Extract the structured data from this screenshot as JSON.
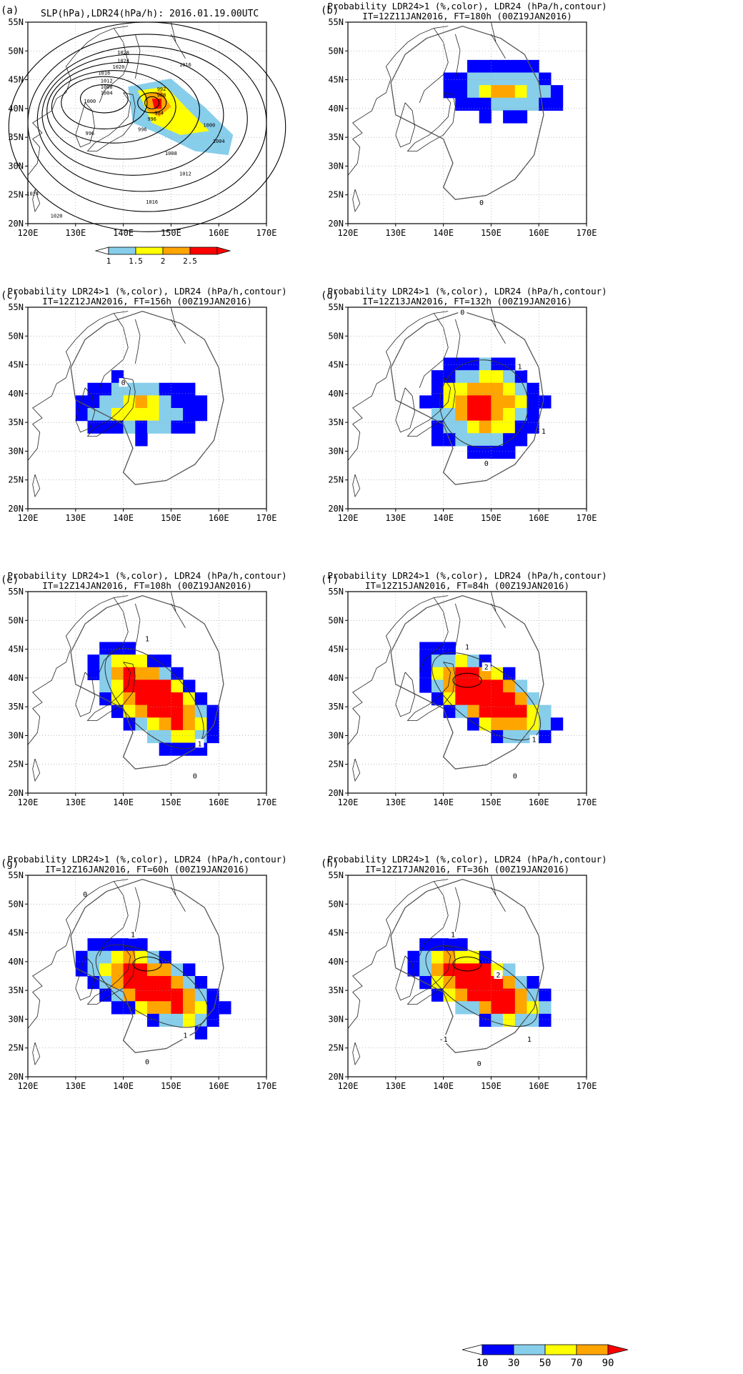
{
  "panels": [
    {
      "id": "a",
      "label": "(a)",
      "title1": "SLP(hPa),LDR24(hPa/h): 2016.01.19.00UTC",
      "title2": ""
    },
    {
      "id": "b",
      "label": "(b)",
      "title1": "Probability LDR24>1 (%,color), LDR24 (hPa/h,contour)",
      "title2": "IT=12Z11JAN2016, FT=180h (00Z19JAN2016)"
    },
    {
      "id": "c",
      "label": "(c)",
      "title1": "Probability LDR24>1 (%,color), LDR24 (hPa/h,contour)",
      "title2": "IT=12Z12JAN2016, FT=156h (00Z19JAN2016)"
    },
    {
      "id": "d",
      "label": "(d)",
      "title1": "Probability LDR24>1 (%,color), LDR24 (hPa/h,contour)",
      "title2": "IT=12Z13JAN2016, FT=132h (00Z19JAN2016)"
    },
    {
      "id": "e",
      "label": "(e)",
      "title1": "Probability LDR24>1 (%,color), LDR24 (hPa/h,contour)",
      "title2": "IT=12Z14JAN2016, FT=108h (00Z19JAN2016)"
    },
    {
      "id": "f",
      "label": "(f)",
      "title1": "Probability LDR24>1 (%,color), LDR24 (hPa/h,contour)",
      "title2": "IT=12Z15JAN2016, FT=84h (00Z19JAN2016)"
    },
    {
      "id": "g",
      "label": "(g)",
      "title1": "Probability LDR24>1 (%,color), LDR24 (hPa/h,contour)",
      "title2": "IT=12Z16JAN2016, FT=60h (00Z19JAN2016)"
    },
    {
      "id": "h",
      "label": "(h)",
      "title1": "Probability LDR24>1 (%,color), LDR24 (hPa/h,contour)",
      "title2": "IT=12Z17JAN2016, FT=36h (00Z19JAN2016)"
    }
  ],
  "axes": {
    "lon_labels": [
      "120E",
      "130E",
      "140E",
      "150E",
      "160E",
      "170E"
    ],
    "lat_labels": [
      "20N",
      "25N",
      "30N",
      "35N",
      "40N",
      "45N",
      "50N",
      "55N"
    ]
  },
  "colorbar_a": {
    "labels": [
      "1",
      "1.5",
      "2",
      "2.5"
    ],
    "colors": [
      "#87ceeb",
      "#ffff00",
      "#ffa500",
      "#ff0000"
    ]
  },
  "colorbar_prob": {
    "labels": [
      "10",
      "30",
      "50",
      "70",
      "90"
    ],
    "colors": [
      "#ffffff",
      "#0000ff",
      "#87ceeb",
      "#ffff00",
      "#ffa500",
      "#ff0000"
    ]
  },
  "isobars": [
    "1028",
    "1024",
    "1020",
    "1016",
    "1012",
    "1008",
    "1004",
    "1000",
    "996",
    "992",
    "988",
    "984",
    "1016",
    "1000",
    "1004",
    "1008",
    "1012",
    "1016",
    "1024",
    "1020",
    "996",
    "996"
  ],
  "contour_labels": {
    "b": [
      "0"
    ],
    "c": [
      "0"
    ],
    "d": [
      "0",
      "1",
      "1",
      "0"
    ],
    "e": [
      "1",
      "1",
      "0"
    ],
    "f": [
      "1",
      "2",
      "1",
      "0"
    ],
    "g": [
      "0",
      "1",
      "1",
      "0"
    ],
    "h": [
      "1",
      "2",
      "1",
      "-1",
      "0"
    ]
  }
}
